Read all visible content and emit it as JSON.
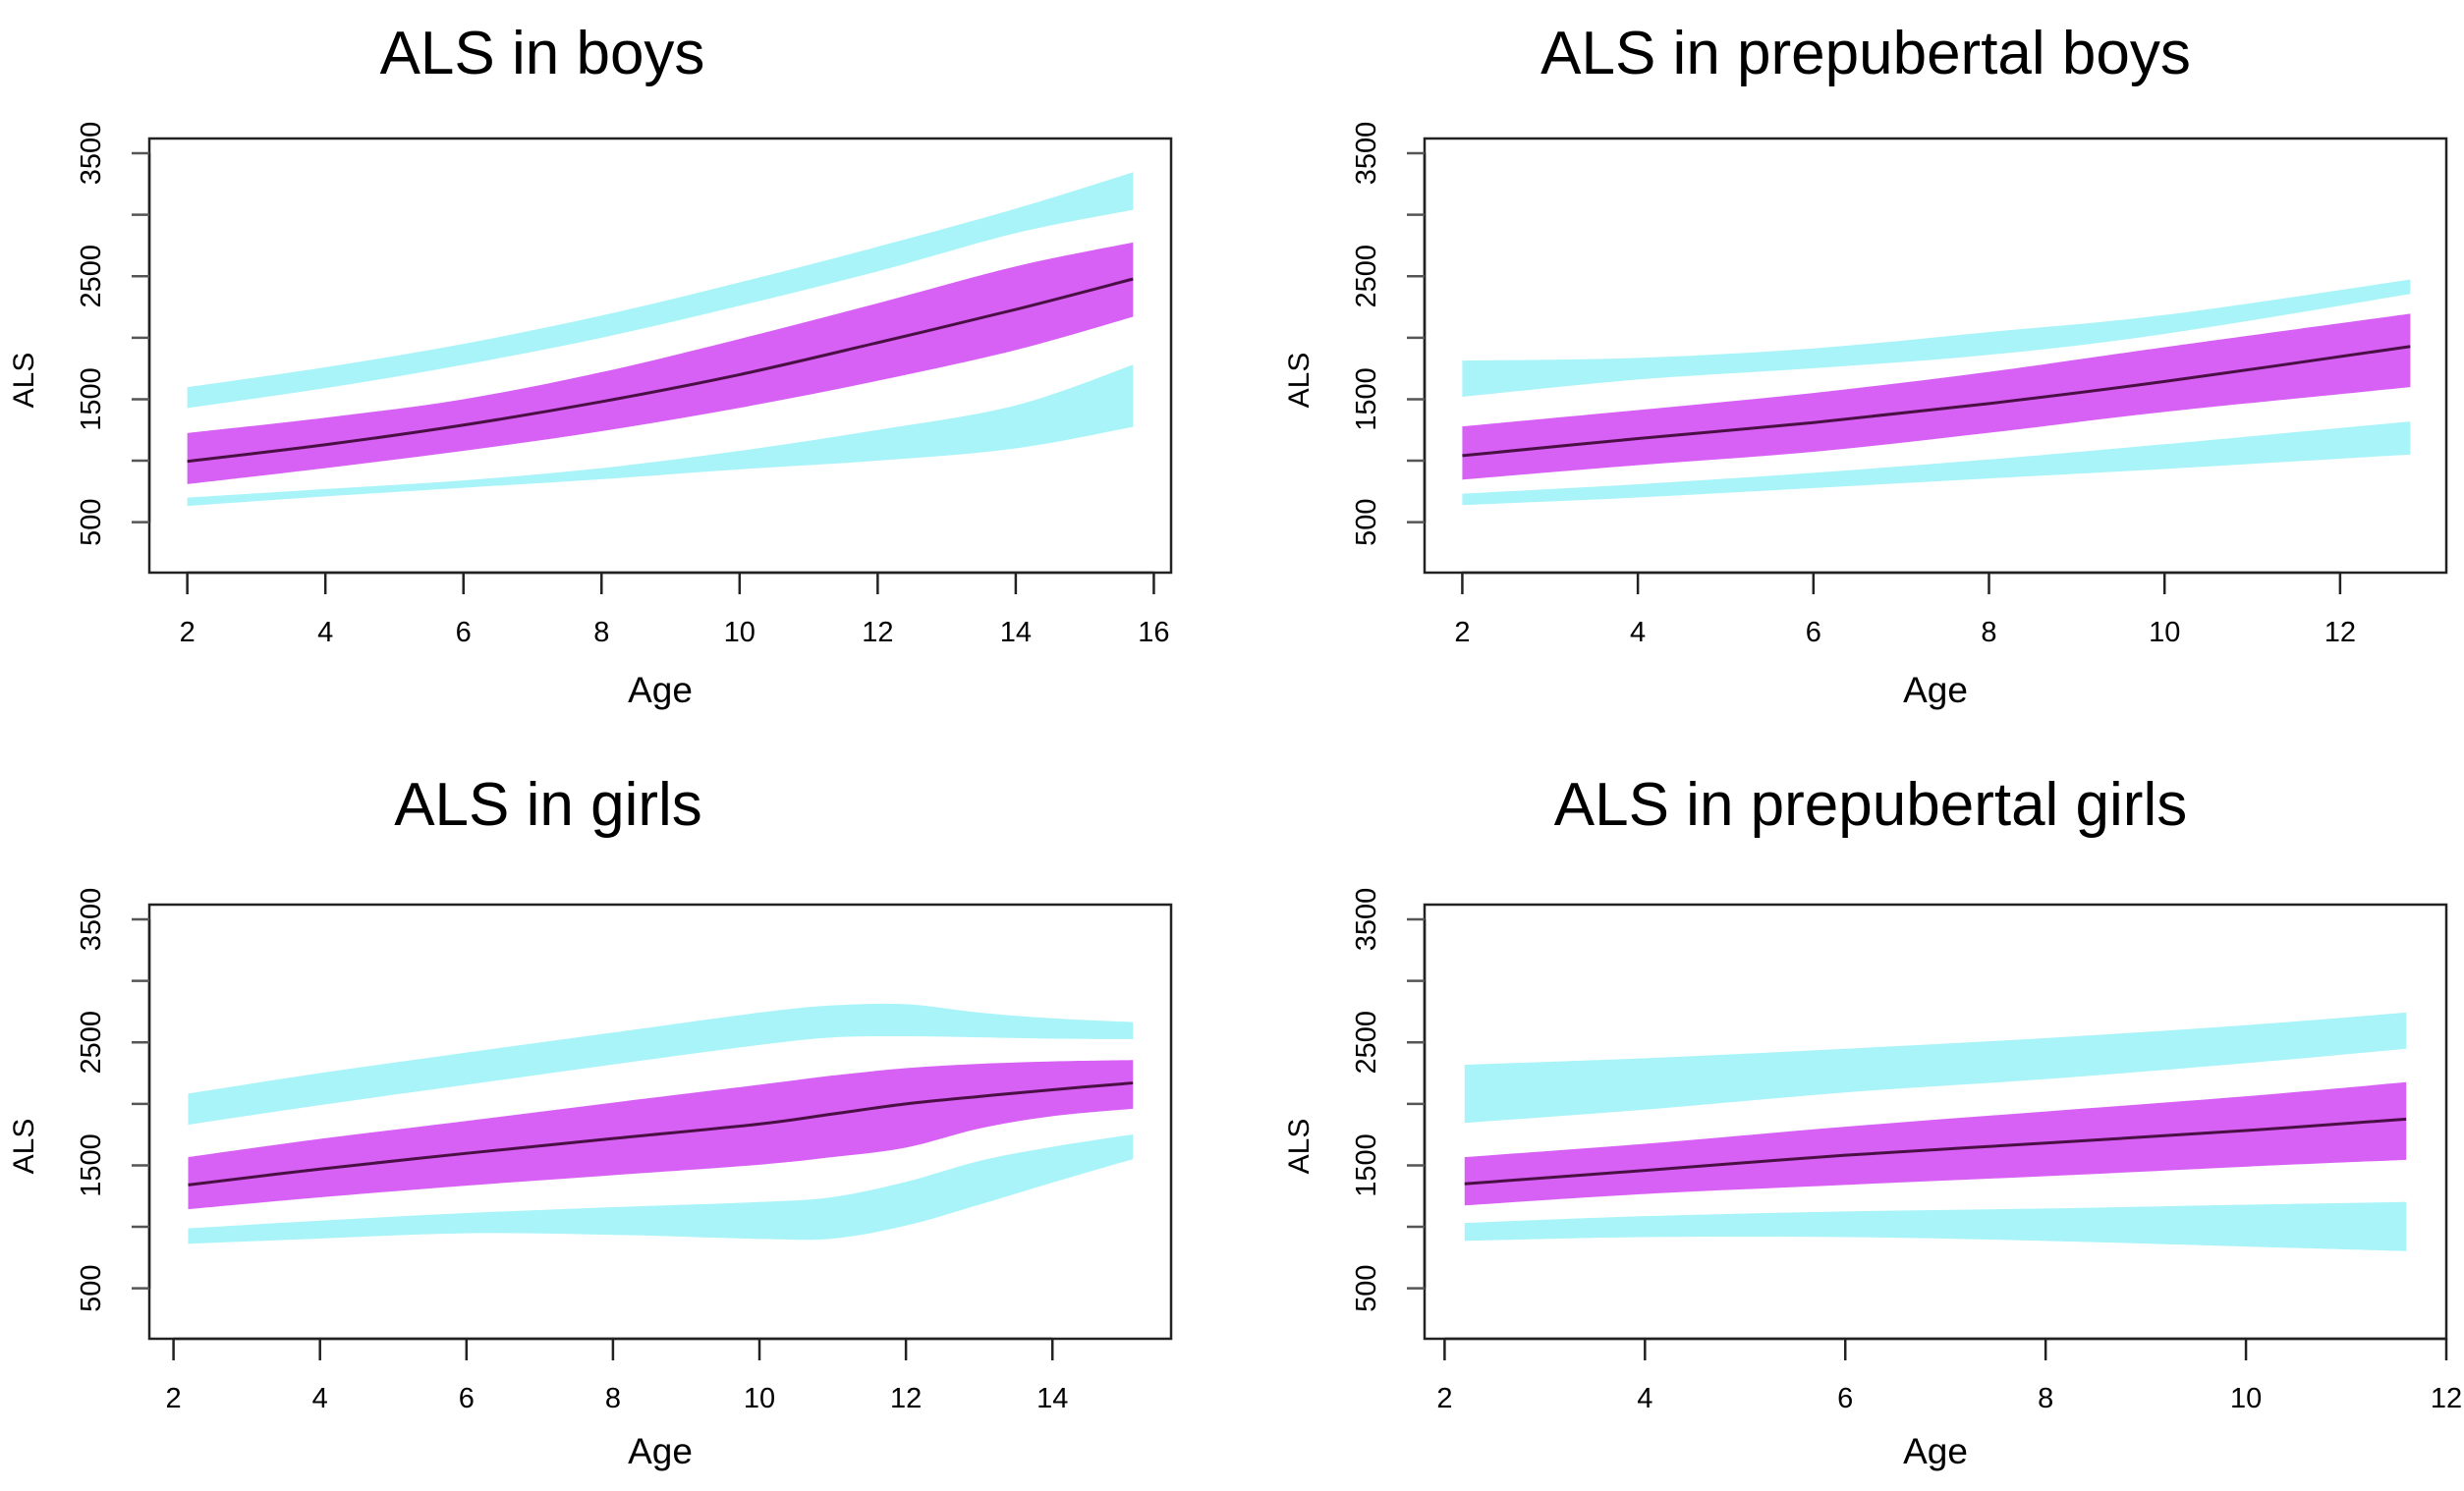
{
  "colors": {
    "outer_band": "#a8f4f8",
    "inner_band": "#d861f5",
    "median_line": "#4a1046",
    "axis": "#222222"
  },
  "chart_data": [
    {
      "type": "area",
      "title": "ALS in boys",
      "xlabel": "Age",
      "ylabel": "ALS",
      "xlim": [
        1.45,
        16.25
      ],
      "ylim": [
        90,
        3620
      ],
      "xticks": [
        2,
        4,
        6,
        8,
        10,
        12,
        14,
        16
      ],
      "yticks": [
        500,
        1000,
        1500,
        2000,
        2500,
        3000,
        3500
      ],
      "ytick_labels": [
        "500",
        "",
        "1500",
        "",
        "2500",
        "",
        "3500"
      ],
      "grid": false,
      "x": [
        2,
        4,
        6,
        8,
        10,
        12,
        14,
        15.7
      ],
      "median": [
        995,
        1130,
        1290,
        1480,
        1700,
        1960,
        2230,
        2478
      ],
      "inner_band": {
        "lower": [
          810,
          940,
          1080,
          1240,
          1430,
          1650,
          1900,
          2170
        ],
        "upper": [
          1225,
          1350,
          1500,
          1720,
          1990,
          2280,
          2580,
          2775
        ]
      },
      "upper_outer_band": {
        "lower": [
          1428,
          1590,
          1780,
          2000,
          2260,
          2540,
          2850,
          3040
        ],
        "upper": [
          1598,
          1760,
          1950,
          2180,
          2450,
          2740,
          3050,
          3345
        ]
      },
      "lower_outer_band": {
        "lower": [
          632,
          710,
          780,
          850,
          930,
          1000,
          1100,
          1275
        ],
        "upper": [
          700,
          770,
          840,
          940,
          1080,
          1250,
          1450,
          1780
        ]
      }
    },
    {
      "type": "area",
      "title": "ALS in prepubertal boys",
      "xlabel": "Age",
      "ylabel": "ALS",
      "xlim": [
        1.57,
        13.21
      ],
      "ylim": [
        90,
        3620
      ],
      "xticks": [
        2,
        4,
        6,
        8,
        10,
        12
      ],
      "yticks": [
        500,
        1000,
        1500,
        2000,
        2500,
        3000,
        3500
      ],
      "ytick_labels": [
        "500",
        "",
        "1500",
        "",
        "2500",
        "",
        "3500"
      ],
      "grid": false,
      "x": [
        2,
        4,
        6,
        8,
        10,
        12.8
      ],
      "median": [
        1041,
        1180,
        1310,
        1465,
        1644,
        1929
      ],
      "inner_band": {
        "lower": [
          846,
          964,
          1072,
          1227,
          1397,
          1598
        ],
        "upper": [
          1279,
          1412,
          1551,
          1722,
          1923,
          2195
        ]
      },
      "upper_outer_band": {
        "lower": [
          1520,
          1660,
          1752,
          1861,
          2031,
          2356
        ],
        "upper": [
          1814,
          1836,
          1913,
          2046,
          2185,
          2473
        ]
      },
      "lower_outer_band": {
        "lower": [
          639,
          701,
          778,
          856,
          933,
          1050
        ],
        "upper": [
          732,
          809,
          902,
          1010,
          1134,
          1319
        ]
      }
    },
    {
      "type": "area",
      "title": "ALS in girls",
      "xlabel": "Age",
      "ylabel": "ALS",
      "xlim": [
        1.67,
        15.62
      ],
      "ylim": [
        90,
        3620
      ],
      "xticks": [
        2,
        4,
        6,
        8,
        10,
        12,
        14
      ],
      "yticks": [
        500,
        1000,
        1500,
        2000,
        2500,
        3000,
        3500
      ],
      "ytick_labels": [
        "500",
        "",
        "1500",
        "",
        "2500",
        "",
        "3500"
      ],
      "grid": false,
      "x": [
        2.2,
        4,
        6,
        8,
        10,
        11,
        12,
        13,
        14,
        15.1
      ],
      "median": [
        1341,
        1470,
        1598,
        1718,
        1836,
        1918,
        2000,
        2060,
        2115,
        2170
      ],
      "inner_band": {
        "lower": [
          1143,
          1240,
          1335,
          1420,
          1505,
          1567,
          1644,
          1799,
          1900,
          1960
        ],
        "upper": [
          1567,
          1715,
          1861,
          2010,
          2155,
          2230,
          2290,
          2325,
          2345,
          2356
        ]
      },
      "upper_outer_band": {
        "lower": [
          1830,
          1990,
          2155,
          2320,
          2479,
          2540,
          2550,
          2541,
          2530,
          2526
        ],
        "upper": [
          2083,
          2250,
          2417,
          2580,
          2742,
          2800,
          2810,
          2742,
          2696,
          2665
        ]
      },
      "lower_outer_band": {
        "lower": [
          862,
          905,
          948,
          935,
          902,
          905,
          1010,
          1180,
          1360,
          1551
        ],
        "upper": [
          988,
          1050,
          1112,
          1160,
          1202,
          1242,
          1366,
          1536,
          1650,
          1752
        ]
      }
    },
    {
      "type": "area",
      "title": "ALS in prepubertal girls",
      "xlabel": "Age",
      "ylabel": "ALS",
      "xlim": [
        1.8,
        12.0
      ],
      "ylim": [
        90,
        3620
      ],
      "xticks": [
        2,
        4,
        6,
        8,
        10,
        12
      ],
      "yticks": [
        500,
        1000,
        1500,
        2000,
        2500,
        3000,
        3500
      ],
      "ytick_labels": [
        "500",
        "",
        "1500",
        "",
        "2500",
        "",
        "3500"
      ],
      "grid": false,
      "x": [
        2.2,
        4,
        6,
        8,
        10,
        11.6
      ],
      "median": [
        1350,
        1459,
        1582,
        1681,
        1783,
        1876
      ],
      "inner_band": {
        "lower": [
          1174,
          1267,
          1341,
          1412,
          1489,
          1545
        ],
        "upper": [
          1567,
          1675,
          1814,
          1938,
          2062,
          2176
        ]
      },
      "upper_outer_band": {
        "lower": [
          1845,
          1953,
          2093,
          2201,
          2331,
          2448
        ],
        "upper": [
          2318,
          2371,
          2448,
          2535,
          2640,
          2742
        ]
      },
      "lower_outer_band": {
        "lower": [
          886,
          917,
          917,
          886,
          840,
          803
        ],
        "upper": [
          1032,
          1087,
          1125,
          1149,
          1180,
          1202
        ]
      }
    }
  ]
}
